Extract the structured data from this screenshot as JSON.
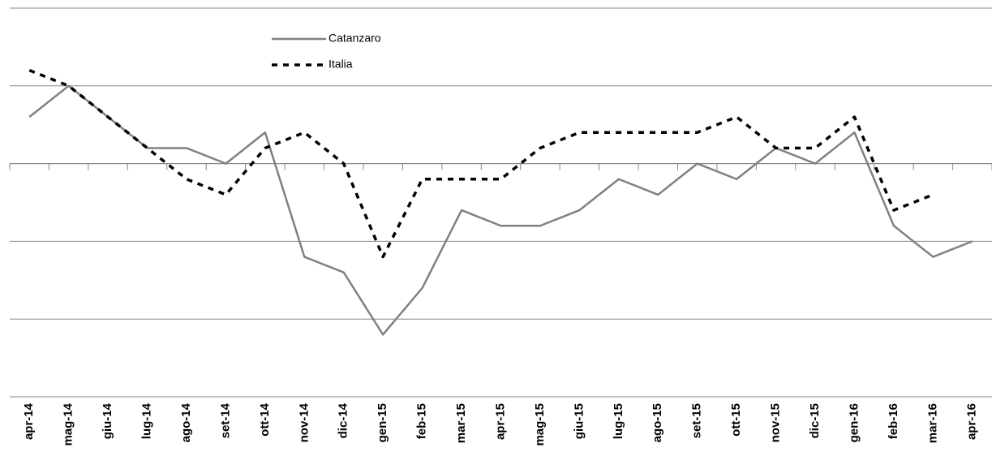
{
  "chart_data": {
    "type": "line",
    "categories": [
      "apr-14",
      "mag-14",
      "giu-14",
      "lug-14",
      "ago-14",
      "set-14",
      "ott-14",
      "nov-14",
      "dic-14",
      "gen-15",
      "feb-15",
      "mar-15",
      "apr-15",
      "mag-15",
      "giu-15",
      "lug-15",
      "ago-15",
      "set-15",
      "ott-15",
      "nov-15",
      "dic-15",
      "gen-16",
      "feb-16",
      "mar-16",
      "apr-16"
    ],
    "series": [
      {
        "name": "Catanzaro",
        "color": "#808080",
        "style": "solid",
        "values": [
          0.6,
          1.0,
          0.6,
          0.2,
          0.2,
          0,
          0.4,
          -1.2,
          -1.4,
          -2.2,
          -1.6,
          -0.6,
          -0.8,
          -0.8,
          -0.6,
          -0.2,
          -0.4,
          0,
          -0.2,
          0.2,
          0,
          0.4,
          -0.8,
          -1.2,
          -1.0
        ]
      },
      {
        "name": "Italia",
        "color": "#000000",
        "style": "dashed",
        "values": [
          1.2,
          1.0,
          0.6,
          0.2,
          -0.2,
          -0.4,
          0.2,
          0.4,
          0,
          -1.2,
          -0.2,
          -0.2,
          -0.2,
          0.2,
          0.4,
          0.4,
          0.4,
          0.4,
          0.6,
          0.2,
          0.2,
          0.6,
          -0.6,
          -0.4,
          null
        ]
      }
    ],
    "ylim": [
      -3,
      2
    ],
    "yticks": [
      -3,
      -2,
      -1,
      0,
      1,
      2
    ],
    "grid": true
  }
}
